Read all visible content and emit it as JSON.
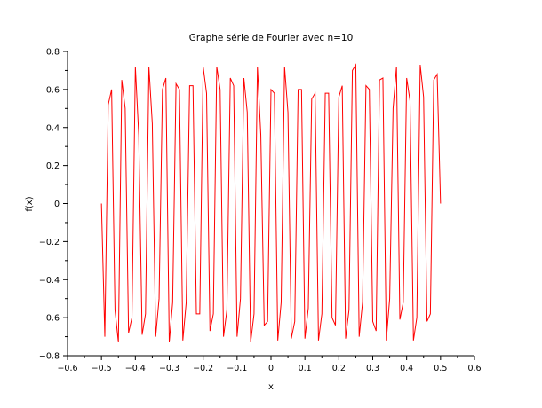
{
  "chart_data": {
    "type": "line",
    "title": "Graphe série de Fourier avec n=10",
    "xlabel": "x",
    "ylabel": "f(x)",
    "xlim": [
      -0.6,
      0.6
    ],
    "ylim": [
      -0.8,
      0.8
    ],
    "xticks": [
      -0.6,
      -0.5,
      -0.4,
      -0.3,
      -0.2,
      -0.1,
      0,
      0.1,
      0.2,
      0.3,
      0.4,
      0.5,
      0.6
    ],
    "xtick_labels": [
      "−0.6",
      "−0.5",
      "−0.4",
      "−0.3",
      "−0.2",
      "−0.1",
      "0",
      "0.1",
      "0.2",
      "0.3",
      "0.4",
      "0.5",
      "0.6"
    ],
    "yticks": [
      -0.8,
      -0.6,
      -0.4,
      -0.2,
      0,
      0.2,
      0.4,
      0.6,
      0.8
    ],
    "ytick_labels": [
      "−0.8",
      "−0.6",
      "−0.4",
      "−0.2",
      "0",
      "0.2",
      "0.4",
      "0.6",
      "0.8"
    ],
    "grid": false,
    "line_color": "#ff0000",
    "series": [
      {
        "name": "",
        "x": [
          -0.5,
          -0.49,
          -0.48,
          -0.47,
          -0.46,
          -0.45,
          -0.44,
          -0.43,
          -0.42,
          -0.41,
          -0.4,
          -0.39,
          -0.38,
          -0.37,
          -0.36,
          -0.35,
          -0.34,
          -0.33,
          -0.32,
          -0.31,
          -0.3,
          -0.29,
          -0.28,
          -0.27,
          -0.26,
          -0.25,
          -0.24,
          -0.23,
          -0.22,
          -0.21,
          -0.2,
          -0.19,
          -0.18,
          -0.17,
          -0.16,
          -0.15,
          -0.14,
          -0.13,
          -0.12,
          -0.11,
          -0.1,
          -0.09,
          -0.08,
          -0.07,
          -0.06,
          -0.05,
          -0.04,
          -0.03,
          -0.02,
          -0.01,
          0,
          0.01,
          0.02,
          0.03,
          0.04,
          0.05,
          0.06,
          0.07,
          0.08,
          0.09,
          0.1,
          0.11,
          0.12,
          0.13,
          0.14,
          0.15,
          0.16,
          0.17,
          0.18,
          0.19,
          0.2,
          0.21,
          0.22,
          0.23,
          0.24,
          0.25,
          0.26,
          0.27,
          0.28,
          0.29,
          0.3,
          0.31,
          0.32,
          0.33,
          0.34,
          0.35,
          0.36,
          0.37,
          0.38,
          0.39,
          0.4,
          0.41,
          0.42,
          0.43,
          0.44,
          0.45,
          0.46,
          0.47,
          0.48,
          0.49,
          0.5
        ],
        "y": [
          0,
          -0.7,
          0.52,
          0.6,
          -0.56,
          -0.73,
          0.65,
          0.5,
          -0.68,
          -0.6,
          0.72,
          0.36,
          -0.69,
          -0.58,
          0.72,
          0.42,
          -0.7,
          -0.5,
          0.6,
          0.66,
          -0.73,
          -0.52,
          0.63,
          0.6,
          -0.72,
          -0.52,
          0.62,
          0.62,
          -0.58,
          -0.58,
          0.72,
          0.58,
          -0.67,
          -0.58,
          0.72,
          0.6,
          -0.7,
          -0.56,
          0.66,
          0.62,
          -0.7,
          -0.5,
          0.66,
          0.48,
          -0.73,
          -0.58,
          0.72,
          0.36,
          -0.64,
          -0.62,
          0.6,
          0.58,
          -0.72,
          -0.52,
          0.72,
          0.48,
          -0.71,
          -0.62,
          0.6,
          0.6,
          -0.71,
          -0.55,
          0.55,
          0.58,
          -0.72,
          -0.58,
          0.58,
          0.58,
          -0.6,
          -0.64,
          0.56,
          0.62,
          -0.71,
          -0.56,
          0.7,
          0.73,
          -0.7,
          -0.52,
          0.62,
          0.6,
          -0.62,
          -0.67,
          0.65,
          0.66,
          -0.72,
          -0.5,
          0.5,
          0.72,
          -0.61,
          -0.52,
          0.66,
          0.54,
          -0.72,
          -0.6,
          0.73,
          0.56,
          -0.62,
          -0.58,
          0.65,
          0.68,
          0
        ]
      }
    ]
  }
}
